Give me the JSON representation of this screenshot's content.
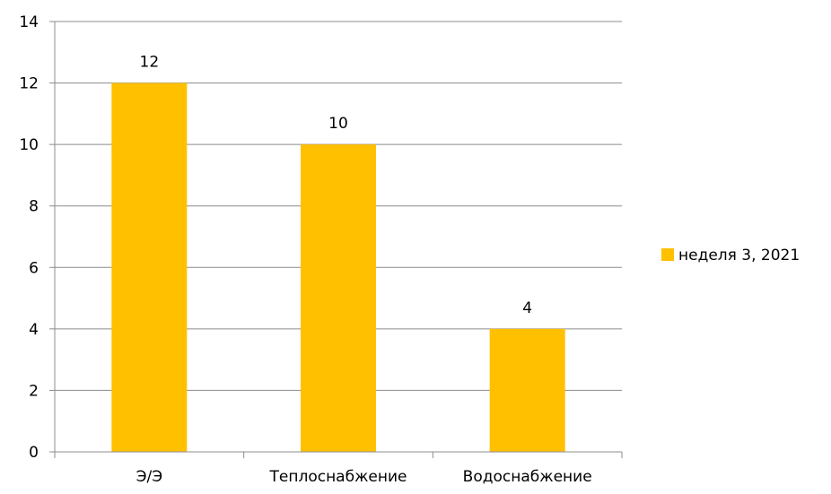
{
  "chart_data": {
    "type": "bar",
    "categories": [
      "Э/Э",
      "Теплоснабжение",
      "Водоснабжение"
    ],
    "series": [
      {
        "name": "неделя 3, 2021",
        "values": [
          12,
          10,
          4
        ],
        "color": "#FFC000"
      }
    ],
    "data_labels": [
      "12",
      "10",
      "4"
    ],
    "ylim": [
      0,
      14
    ],
    "yticks": [
      0,
      2,
      4,
      6,
      8,
      10,
      12,
      14
    ],
    "grid": true,
    "legend_position": "right",
    "title": "",
    "xlabel": "",
    "ylabel": ""
  }
}
